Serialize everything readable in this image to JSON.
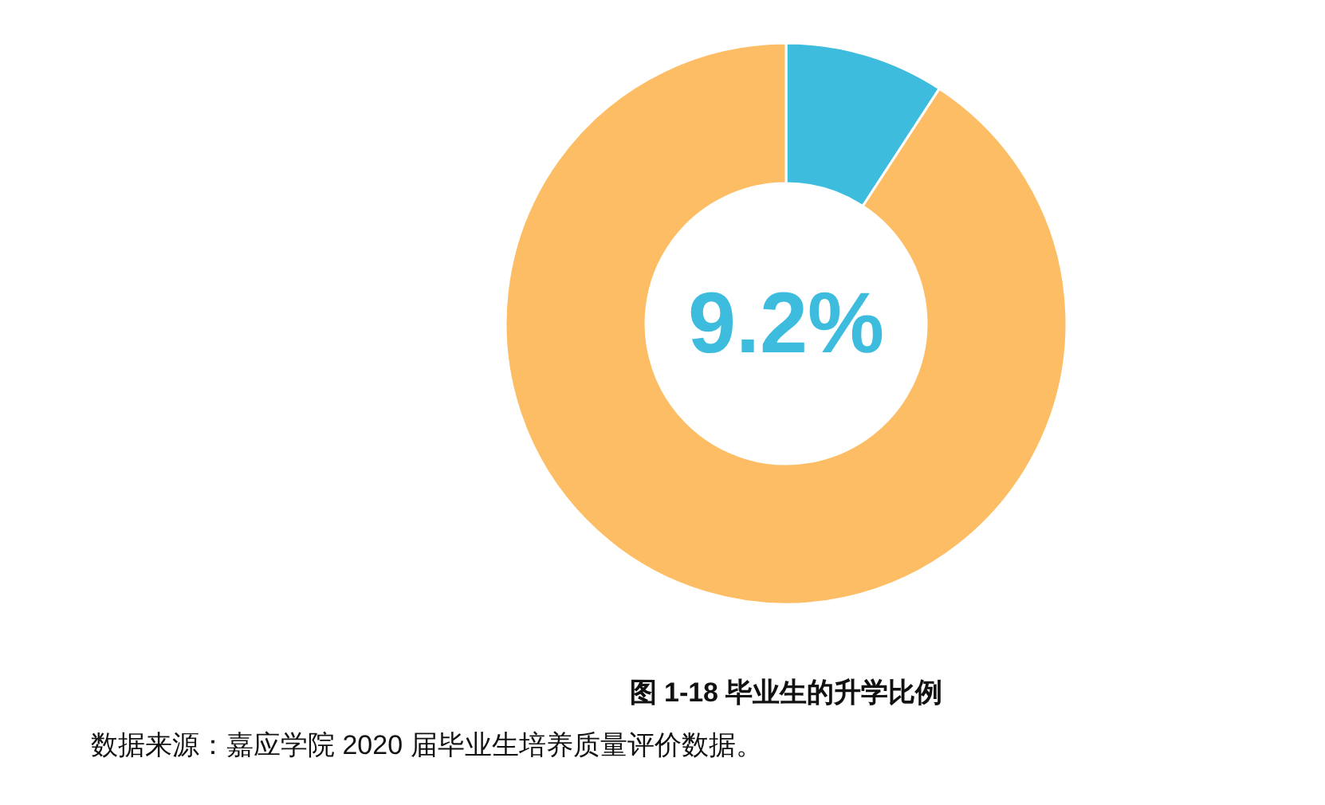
{
  "chart_data": {
    "type": "donut",
    "title": "图 1-18 毕业生的升学比例",
    "categories": [
      null,
      null
    ],
    "values": [
      9.2,
      90.8
    ],
    "colors": [
      "#3dbcde",
      "#fdbd64"
    ],
    "annotations": [
      "9.2%",
      "数据来源：嘉应学院 2020 届毕业生培养质量评价数据。"
    ]
  }
}
